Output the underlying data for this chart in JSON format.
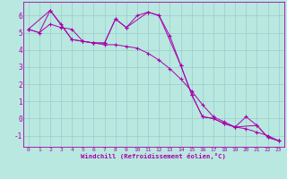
{
  "xlabel": "Windchill (Refroidissement éolien,°C)",
  "bg_color": "#b8e8e0",
  "line_color": "#aa00aa",
  "grid_color": "#99cccc",
  "series1_x": [
    0,
    1,
    2,
    3,
    4,
    5,
    6,
    7,
    8,
    9,
    10,
    11,
    12,
    13,
    14,
    15,
    16,
    17,
    18,
    19,
    20,
    21,
    22,
    23
  ],
  "series1_y": [
    5.2,
    5.0,
    6.3,
    5.5,
    4.6,
    4.5,
    4.4,
    4.4,
    5.8,
    5.3,
    6.0,
    6.2,
    6.0,
    4.8,
    3.1,
    1.4,
    0.1,
    0.0,
    -0.3,
    -0.5,
    0.1,
    -0.4,
    -1.1,
    -1.3
  ],
  "series2_x": [
    0,
    1,
    2,
    3,
    4,
    5,
    6,
    7,
    8,
    9,
    10,
    11,
    12,
    13,
    14,
    15,
    16,
    17,
    18,
    19,
    20,
    21,
    22,
    23
  ],
  "series2_y": [
    5.2,
    5.0,
    5.5,
    5.3,
    5.2,
    4.5,
    4.4,
    4.3,
    4.3,
    4.2,
    4.1,
    3.8,
    3.4,
    2.9,
    2.3,
    1.6,
    0.8,
    0.1,
    -0.2,
    -0.5,
    -0.6,
    -0.8,
    -1.0,
    -1.3
  ],
  "series3_x": [
    0,
    2,
    4,
    5,
    6,
    7,
    8,
    9,
    11,
    12,
    14,
    15,
    16,
    17,
    18,
    19,
    21,
    22,
    23
  ],
  "series3_y": [
    5.2,
    6.3,
    4.6,
    4.5,
    4.4,
    4.4,
    5.8,
    5.3,
    6.2,
    6.0,
    3.1,
    1.4,
    0.1,
    0.0,
    -0.3,
    -0.5,
    -0.4,
    -1.1,
    -1.3
  ],
  "ylim": [
    -1.65,
    6.8
  ],
  "xlim": [
    -0.5,
    23.5
  ],
  "yticks": [
    -1,
    0,
    1,
    2,
    3,
    4,
    5,
    6
  ],
  "xticks": [
    0,
    1,
    2,
    3,
    4,
    5,
    6,
    7,
    8,
    9,
    10,
    11,
    12,
    13,
    14,
    15,
    16,
    17,
    18,
    19,
    20,
    21,
    22,
    23
  ]
}
